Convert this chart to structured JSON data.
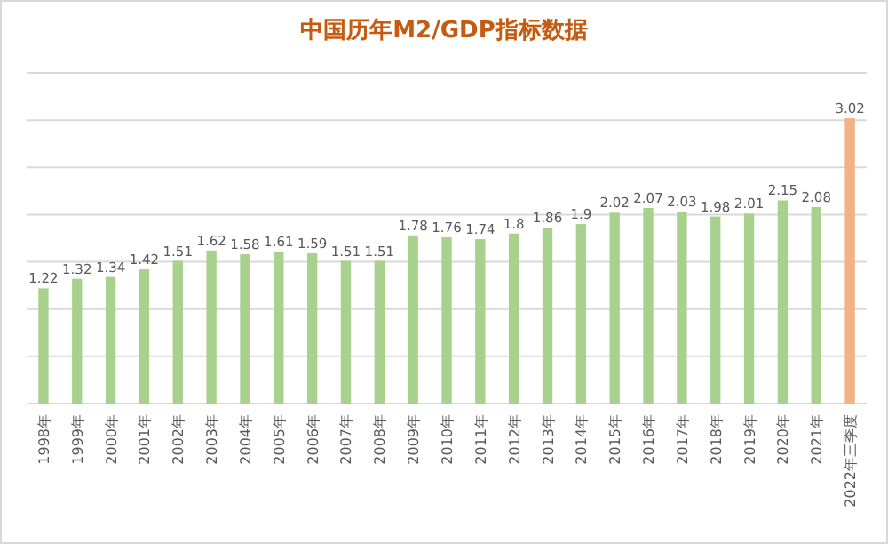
{
  "chart_data": {
    "type": "bar",
    "title": "中国历年M2/GDP指标数据",
    "categories": [
      "1998年",
      "1999年",
      "2000年",
      "2001年",
      "2002年",
      "2003年",
      "2004年",
      "2005年",
      "2006年",
      "2007年",
      "2008年",
      "2009年",
      "2010年",
      "2011年",
      "2012年",
      "2013年",
      "2014年",
      "2015年",
      "2016年",
      "2017年",
      "2018年",
      "2019年",
      "2020年",
      "2021年",
      "2022年三季度"
    ],
    "values": [
      1.22,
      1.32,
      1.34,
      1.42,
      1.51,
      1.62,
      1.58,
      1.61,
      1.59,
      1.51,
      1.51,
      1.78,
      1.76,
      1.74,
      1.8,
      1.86,
      1.9,
      2.02,
      2.07,
      2.03,
      1.98,
      2.01,
      2.15,
      2.08,
      3.02
    ],
    "colors": [
      "#a9d18e",
      "#a9d18e",
      "#a9d18e",
      "#a9d18e",
      "#a9d18e",
      "#a9d18e",
      "#a9d18e",
      "#a9d18e",
      "#a9d18e",
      "#a9d18e",
      "#a9d18e",
      "#a9d18e",
      "#a9d18e",
      "#a9d18e",
      "#a9d18e",
      "#a9d18e",
      "#a9d18e",
      "#a9d18e",
      "#a9d18e",
      "#a9d18e",
      "#a9d18e",
      "#a9d18e",
      "#a9d18e",
      "#a9d18e",
      "#f4b183"
    ],
    "ylim": [
      0,
      3.5
    ],
    "yticks": [
      {
        "value": 0,
        "label": null
      },
      {
        "value": 0.5,
        "label": null
      },
      {
        "value": 1,
        "label": null
      },
      {
        "value": 1.5,
        "label": null
      },
      {
        "value": 2,
        "label": null
      },
      {
        "value": 2.5,
        "label": null
      },
      {
        "value": 3,
        "label": null
      },
      {
        "value": 3.5,
        "label": null
      }
    ],
    "grid": "y",
    "tick_labels": "x",
    "data_labels": true
  }
}
